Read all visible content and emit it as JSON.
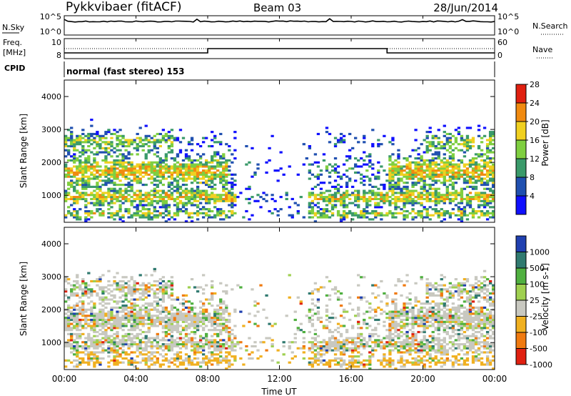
{
  "header": {
    "title": "Pykkvibaer (fitACF)",
    "beam": "Beam 03",
    "date": "28/Jun/2014"
  },
  "nsky_panel": {
    "left_label": "N.Sky",
    "right_label": "N.Search",
    "left_ticks": [
      "10^5",
      "10^0"
    ],
    "right_ticks": [
      "10^5",
      "10^0"
    ]
  },
  "freq_panel": {
    "left_label_1": "Freq.",
    "left_label_2": "[MHz]",
    "right_label": "Nave",
    "left_ticks": [
      "10",
      "8"
    ],
    "right_ticks": [
      "60",
      "0"
    ]
  },
  "cpid": {
    "label": "CPID",
    "value": "normal (fast stereo) 153"
  },
  "x_axis": {
    "ticks": [
      "00:00",
      "04:00",
      "08:00",
      "12:00",
      "16:00",
      "20:00",
      "00:00"
    ],
    "label": "Time UT"
  },
  "chart_data": [
    {
      "type": "heatmap",
      "panel": "power",
      "ylabel": "Slant Range [km]",
      "ylim": [
        180,
        4500
      ],
      "xlim_hours": [
        0,
        24
      ],
      "y_ticks": [
        1000,
        2000,
        3000,
        4000
      ],
      "colorbar_label": "Power [dB]",
      "colorbar_ticks": [
        "4",
        "8",
        "12",
        "16",
        "20",
        "24",
        "28"
      ],
      "colorbar_range": [
        0,
        30
      ],
      "colors": [
        "#1010ff",
        "#2050b0",
        "#3a9a6a",
        "#7fcf40",
        "#f0d020",
        "#f08a10",
        "#e02010"
      ]
    },
    {
      "type": "heatmap",
      "panel": "velocity",
      "ylabel": "Slant Range [km]",
      "ylim": [
        180,
        4500
      ],
      "xlim_hours": [
        0,
        24
      ],
      "y_ticks": [
        1000,
        2000,
        3000,
        4000
      ],
      "colorbar_label": "Velocity [m s-1]",
      "colorbar_ticks": [
        "1000",
        "500",
        "100",
        "25",
        "-25",
        "-100",
        "-500",
        "-1000"
      ],
      "colors": [
        "#2040b0",
        "#307a70",
        "#50b040",
        "#9fd050",
        "#c8c8c0",
        "#f0b020",
        "#f07a10",
        "#e02010"
      ]
    }
  ]
}
